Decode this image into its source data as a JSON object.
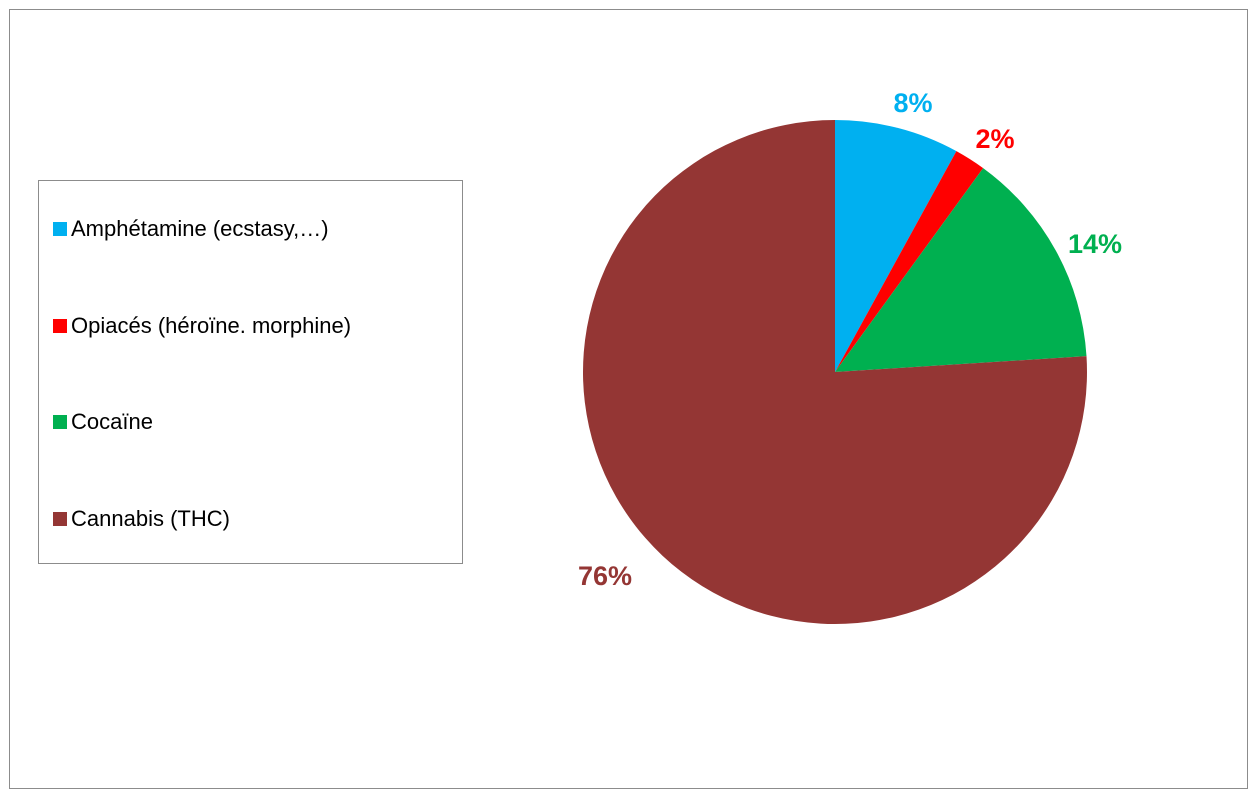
{
  "chart_data": {
    "type": "pie",
    "title": "",
    "categories": [
      "Amphétamine (ecstasy,…)",
      "Opiacés (héroïne. morphine)",
      "Cocaïne",
      "Cannabis (THC)"
    ],
    "values": [
      8,
      2,
      14,
      76
    ],
    "data_labels": [
      "8%",
      "2%",
      "14%",
      "76%"
    ],
    "colors": [
      "#00b0f0",
      "#ff0000",
      "#00b050",
      "#943634"
    ],
    "start_angle": "12 o'clock, clockwise",
    "legend_position": "left"
  }
}
